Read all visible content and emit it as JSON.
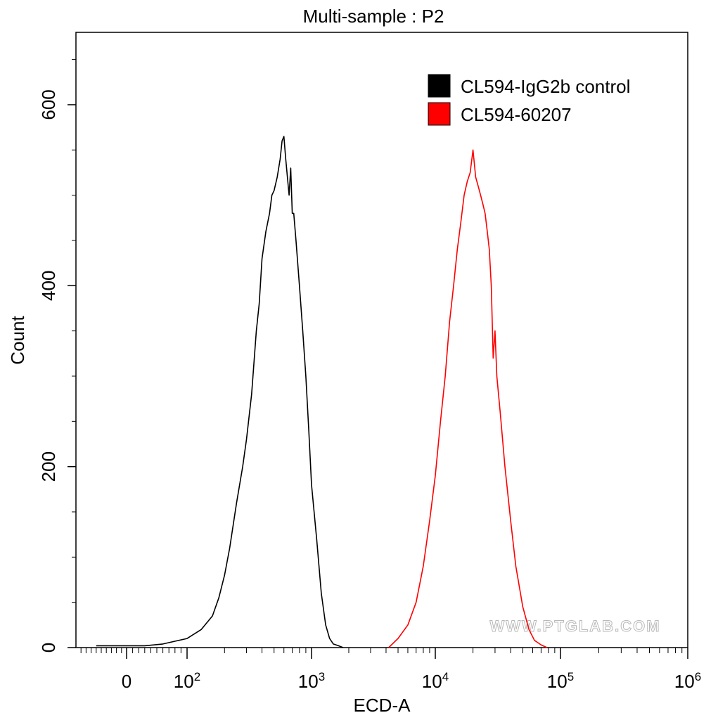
{
  "chart_data": {
    "type": "line",
    "title": "Multi-sample : P2",
    "xlabel": "ECD-A",
    "ylabel": "Count",
    "x_scale": "logicle",
    "xlim": [
      -100,
      1000000
    ],
    "ylim": [
      0,
      680
    ],
    "x_ticks": [
      {
        "value": 0,
        "base": "0",
        "exp": ""
      },
      {
        "value": 100,
        "base": "10",
        "exp": "2"
      },
      {
        "value": 1000,
        "base": "10",
        "exp": "3"
      },
      {
        "value": 10000,
        "base": "10",
        "exp": "4"
      },
      {
        "value": 100000,
        "base": "10",
        "exp": "5"
      },
      {
        "value": 1000000,
        "base": "10",
        "exp": "6"
      }
    ],
    "y_ticks": [
      0,
      200,
      400,
      600
    ],
    "grid": false,
    "legend_position": "top-right",
    "series": [
      {
        "name": "CL594-IgG2b control",
        "color": "#000000",
        "x": [
          -60,
          -10,
          30,
          60,
          100,
          130,
          160,
          180,
          200,
          220,
          250,
          280,
          300,
          330,
          360,
          380,
          400,
          430,
          460,
          480,
          500,
          530,
          560,
          580,
          600,
          620,
          640,
          660,
          680,
          700,
          720,
          750,
          800,
          850,
          900,
          950,
          1000,
          1100,
          1200,
          1300,
          1400,
          1500,
          1650,
          1800
        ],
        "values": [
          2,
          2,
          2,
          4,
          10,
          20,
          35,
          55,
          80,
          110,
          160,
          200,
          230,
          280,
          350,
          380,
          430,
          460,
          480,
          500,
          505,
          520,
          540,
          560,
          565,
          540,
          520,
          500,
          530,
          480,
          480,
          450,
          400,
          350,
          300,
          240,
          180,
          120,
          60,
          25,
          10,
          4,
          2,
          0
        ]
      },
      {
        "name": "CL594-60207",
        "color": "#ff0000",
        "x": [
          4200,
          5000,
          6000,
          7000,
          8000,
          9000,
          10000,
          11000,
          12000,
          13000,
          14000,
          15000,
          16000,
          17000,
          18000,
          19000,
          20000,
          21000,
          22000,
          23000,
          24000,
          25000,
          26000,
          27000,
          28000,
          29000,
          30000,
          31000,
          33000,
          36000,
          40000,
          44000,
          50000,
          56000,
          62000,
          70000,
          78000
        ],
        "values": [
          0,
          10,
          25,
          50,
          90,
          140,
          190,
          250,
          300,
          360,
          400,
          440,
          470,
          500,
          515,
          525,
          550,
          520,
          510,
          500,
          490,
          480,
          460,
          440,
          400,
          320,
          350,
          300,
          260,
          200,
          140,
          90,
          45,
          20,
          8,
          3,
          0
        ]
      }
    ],
    "watermark": "WWW.PTGLAB.COM"
  }
}
